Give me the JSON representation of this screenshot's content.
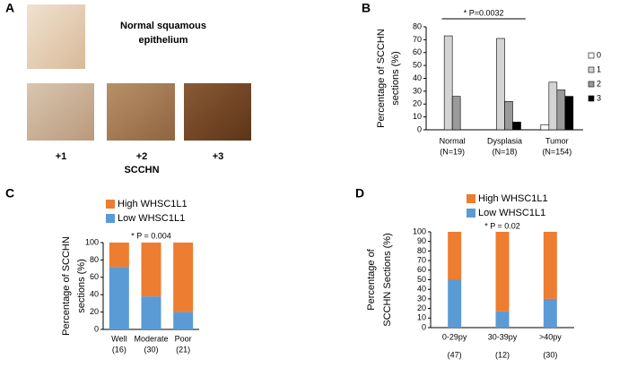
{
  "panel_a": {
    "letter": "A",
    "caption_lines": [
      "Normal squamous",
      "epithelium"
    ],
    "grades": [
      "+1",
      "+2",
      "+3"
    ],
    "group_label": "SCCHN"
  },
  "chart_data": [
    {
      "type": "bar",
      "panel_label": "B",
      "annotation": "* P=0.0032",
      "ylabel": [
        "Percentage of SCCHN",
        "sections (%)"
      ],
      "categories": [
        "Normal",
        "Dysplasia",
        "Tumor"
      ],
      "category_counts": [
        "(N=19)",
        "(N=18)",
        "(N=154)"
      ],
      "series": [
        {
          "name": "0",
          "color": "#ffffff",
          "values": [
            0,
            0,
            4
          ]
        },
        {
          "name": "1",
          "color": "#d4d4d4",
          "values": [
            73,
            71,
            37
          ]
        },
        {
          "name": "2",
          "color": "#9a9a9a",
          "values": [
            26,
            22,
            31
          ]
        },
        {
          "name": "3",
          "color": "#000000",
          "values": [
            0,
            6,
            26
          ]
        }
      ],
      "ylim": [
        0,
        80
      ],
      "yticks": [
        0,
        10,
        20,
        30,
        40,
        50,
        60,
        70,
        80
      ],
      "grid": false,
      "legend": "right"
    },
    {
      "type": "stacked_bar",
      "panel_label": "C",
      "annotation": "* P = 0.004",
      "ylabel": [
        "Percentage of SCCHN",
        "sections (%)"
      ],
      "categories": [
        "Well",
        "Moderate",
        "Poor"
      ],
      "category_counts": [
        "(16)",
        "(30)",
        "(21)"
      ],
      "series": [
        {
          "name": "Low WHSC1L1",
          "color": "#5b9bd5",
          "values": [
            72,
            38,
            20
          ]
        },
        {
          "name": "High WHSC1L1",
          "color": "#ed7d31",
          "values": [
            28,
            62,
            80
          ]
        }
      ],
      "ylim": [
        0,
        100
      ],
      "yticks": [
        0,
        20,
        40,
        60,
        80,
        100
      ],
      "grid": false,
      "legend": "top"
    },
    {
      "type": "stacked_bar",
      "panel_label": "D",
      "annotation": "* P = 0.02",
      "ylabel": [
        "Percentage of",
        "SCCHN Sections (%)"
      ],
      "categories": [
        "0-29py",
        "30-39py",
        ">40py"
      ],
      "category_counts": [
        "(47)",
        "(12)",
        "(30)"
      ],
      "series": [
        {
          "name": "Low WHSC1L1",
          "color": "#5b9bd5",
          "values": [
            50,
            17,
            30
          ]
        },
        {
          "name": "High WHSC1L1",
          "color": "#ed7d31",
          "values": [
            50,
            83,
            70
          ]
        }
      ],
      "ylim": [
        0,
        100
      ],
      "yticks": [
        0,
        10,
        20,
        30,
        40,
        50,
        60,
        70,
        80,
        90,
        100
      ],
      "grid": false,
      "legend": "top"
    }
  ]
}
